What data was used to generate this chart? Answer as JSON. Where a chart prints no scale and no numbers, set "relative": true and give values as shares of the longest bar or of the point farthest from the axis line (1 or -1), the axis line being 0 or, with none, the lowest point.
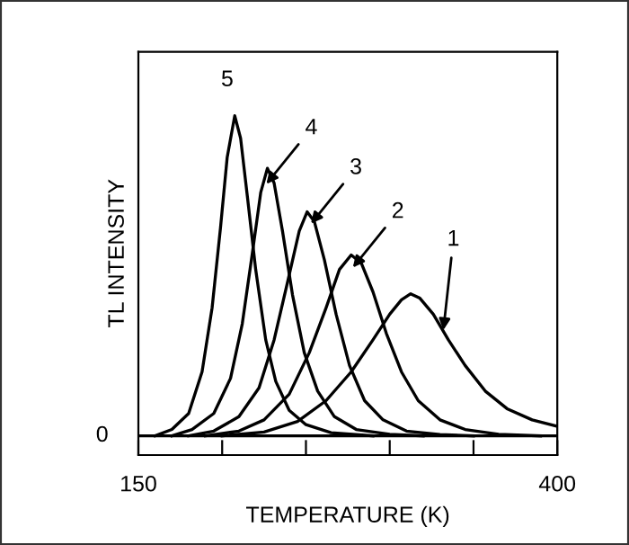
{
  "chart_data": {
    "type": "line",
    "relative": true,
    "xlabel": "TEMPERATURE (K)",
    "ylabel": "TL INTENSITY",
    "xlim": [
      150,
      400
    ],
    "xticks": [
      150,
      {
        "value": 200,
        "label": null
      },
      {
        "value": 250,
        "label": null
      },
      {
        "value": 300,
        "label": null
      },
      {
        "value": 350,
        "label": null
      },
      400
    ],
    "grid": false,
    "legend": false,
    "marker": "none",
    "line_style": "solid",
    "series": [
      {
        "color": "#000000",
        "x": [
          200,
          225,
          245,
          262,
          277,
          290,
          300,
          307,
          312.5,
          318,
          326,
          335,
          345,
          357,
          370,
          385,
          400
        ],
        "values": [
          0,
          0.012,
          0.045,
          0.11,
          0.2,
          0.3,
          0.38,
          0.425,
          0.444,
          0.43,
          0.38,
          0.3,
          0.22,
          0.14,
          0.085,
          0.05,
          0.03
        ]
      },
      {
        "color": "#000000",
        "x": [
          190,
          210,
          225,
          240,
          252,
          262,
          270,
          277,
          283,
          290,
          298,
          307,
          317,
          330,
          345,
          365,
          390
        ],
        "values": [
          0,
          0.015,
          0.05,
          0.13,
          0.26,
          0.4,
          0.52,
          0.565,
          0.54,
          0.45,
          0.32,
          0.2,
          0.11,
          0.05,
          0.02,
          0.005,
          0
        ]
      },
      {
        "color": "#000000",
        "x": [
          180,
          195,
          210,
          222,
          231,
          239,
          246,
          250.7,
          255,
          261,
          268,
          276,
          285,
          296,
          310,
          330,
          350
        ],
        "values": [
          0,
          0.015,
          0.06,
          0.15,
          0.3,
          0.48,
          0.64,
          0.7,
          0.67,
          0.55,
          0.38,
          0.22,
          0.11,
          0.05,
          0.015,
          0.004,
          0
        ]
      },
      {
        "color": "#000000",
        "x": [
          170,
          182,
          195,
          205,
          212,
          218,
          223,
          227,
          231,
          236,
          242,
          249,
          257,
          267,
          280,
          300,
          320
        ],
        "values": [
          0,
          0.02,
          0.07,
          0.18,
          0.35,
          0.57,
          0.76,
          0.836,
          0.79,
          0.64,
          0.44,
          0.26,
          0.14,
          0.06,
          0.02,
          0.005,
          0
        ]
      },
      {
        "color": "#000000",
        "x": [
          160,
          170,
          180,
          188,
          194,
          199,
          203,
          207.5,
          211,
          215,
          220,
          226,
          232,
          240,
          250,
          265,
          290
        ],
        "values": [
          0,
          0.02,
          0.07,
          0.2,
          0.4,
          0.65,
          0.87,
          1.0,
          0.93,
          0.75,
          0.52,
          0.3,
          0.17,
          0.08,
          0.035,
          0.01,
          0
        ]
      }
    ],
    "annotations": [
      "0",
      {
        "text": "1",
        "x": 332,
        "y": 0.33
      },
      {
        "text": "2",
        "x": 278,
        "y": 0.526
      },
      {
        "text": "3",
        "x": 253,
        "y": 0.663
      },
      {
        "text": "4",
        "x": 226.4,
        "y": 0.787
      },
      {
        "text": "5",
        "x": 207.5,
        "y": 1.0
      }
    ]
  }
}
